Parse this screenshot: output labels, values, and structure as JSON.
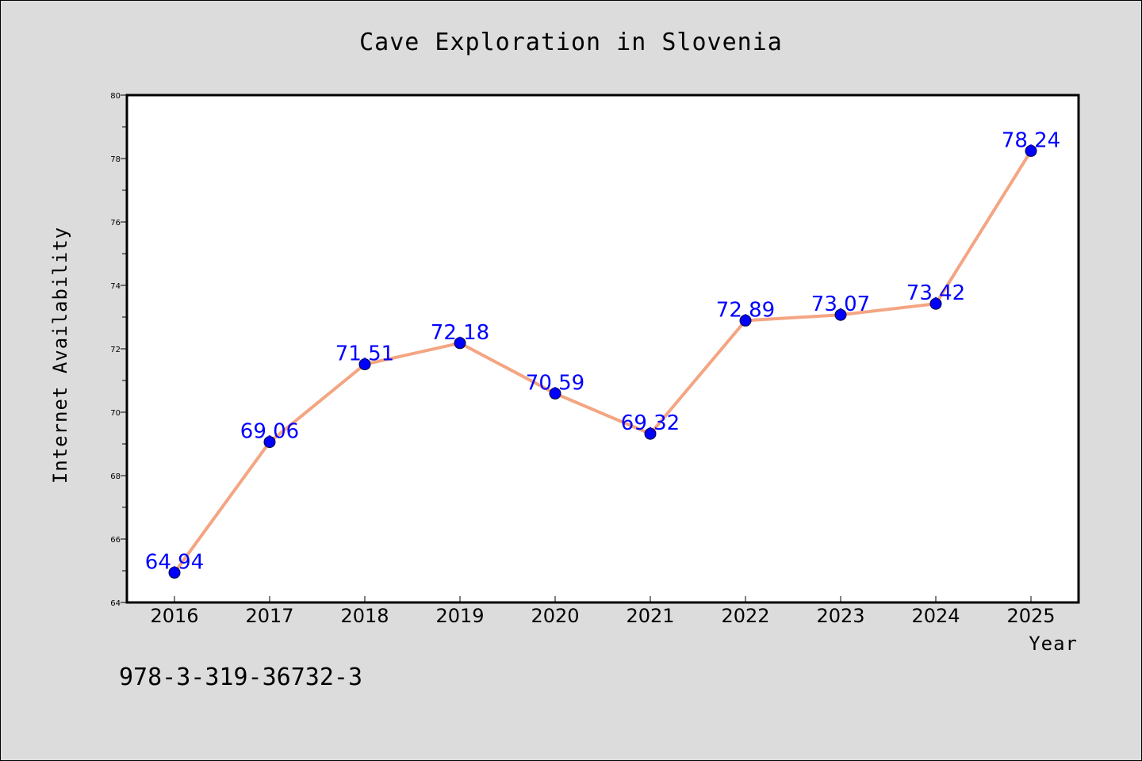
{
  "chart_data": {
    "type": "line",
    "title": "Cave Exploration in Slovenia",
    "xlabel": "Year",
    "ylabel": "Internet Availability",
    "categories": [
      "2016",
      "2017",
      "2018",
      "2019",
      "2020",
      "2021",
      "2022",
      "2023",
      "2024",
      "2025"
    ],
    "series": [
      {
        "values": [
          64.94,
          69.06,
          71.51,
          72.18,
          70.59,
          69.32,
          72.89,
          73.07,
          73.42,
          78.24
        ],
        "labels": [
          "64.94",
          "69.06",
          "71.51",
          "72.18",
          "70.59",
          "69.32",
          "72.89",
          "73.07",
          "73.42",
          "78.24"
        ],
        "line_color": "#f4a582",
        "marker_color": "#0000ff"
      }
    ],
    "ylim": [
      64,
      80
    ],
    "yticks": [
      "64",
      "66",
      "68",
      "70",
      "72",
      "74",
      "76",
      "78",
      "80"
    ],
    "grid": false,
    "legend": "none"
  },
  "annotation": "978-3-319-36732-3",
  "colors": {
    "background": "#dcdcdc",
    "plot_background": "#ffffff",
    "line": "#f4a582",
    "marker": "#0000ff",
    "data_label": "#0000ff"
  }
}
